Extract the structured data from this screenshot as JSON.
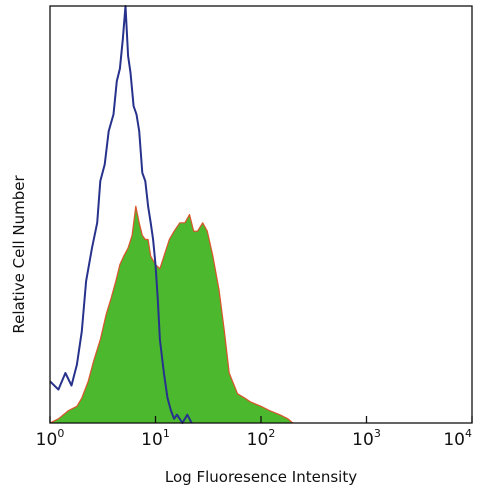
{
  "chart_data": {
    "type": "area",
    "xlabel": "Log Fluoresence Intensity",
    "ylabel": "Relative Cell Number",
    "x_scale": "log",
    "xlim": [
      1,
      10000
    ],
    "ylim": [
      0,
      100
    ],
    "x_ticks": [
      {
        "base": "10",
        "exp": "0",
        "value": 1
      },
      {
        "base": "10",
        "exp": "1",
        "value": 10
      },
      {
        "base": "10",
        "exp": "2",
        "value": 100
      },
      {
        "base": "10",
        "exp": "3",
        "value": 1000
      },
      {
        "base": "10",
        "exp": "4",
        "value": 10000
      }
    ],
    "grid": false,
    "series": [
      {
        "style": "filled",
        "fill_color": "#4cb82e",
        "line_color": "#d9542b",
        "x": [
          1.0,
          1.2,
          1.5,
          1.8,
          2.0,
          2.3,
          2.6,
          3.0,
          3.4,
          3.8,
          4.2,
          4.6,
          5.0,
          5.5,
          6.0,
          6.5,
          7.0,
          7.5,
          8.0,
          8.5,
          9.0,
          10.0,
          11.0,
          12.0,
          13.5,
          15.0,
          17.0,
          19.0,
          21.0,
          23.0,
          25.0,
          28.0,
          31.0,
          35.0,
          40.0,
          45.0,
          50.0,
          60.0,
          70.0,
          80.0,
          100.0,
          120.0,
          150.0,
          180.0,
          200.0
        ],
        "values": [
          0,
          1,
          3,
          4,
          6,
          10,
          15,
          20,
          26,
          30,
          34,
          38,
          40,
          42,
          45,
          52,
          48,
          45,
          44,
          44,
          40,
          38,
          37,
          40,
          44,
          46,
          48,
          48,
          50,
          46,
          46,
          48,
          46,
          40,
          32,
          22,
          12,
          7,
          6,
          5,
          4,
          3,
          2,
          1,
          0
        ]
      },
      {
        "style": "line",
        "line_color": "#27328c",
        "x": [
          1.0,
          1.2,
          1.4,
          1.6,
          1.8,
          2.0,
          2.2,
          2.5,
          2.8,
          3.0,
          3.3,
          3.6,
          4.0,
          4.3,
          4.6,
          4.9,
          5.2,
          5.5,
          5.8,
          6.2,
          6.6,
          7.0,
          7.5,
          8.0,
          8.5,
          9.0,
          9.5,
          10.0,
          10.5,
          11.0,
          12.0,
          13.0,
          14.0,
          15.0,
          16.0,
          18.0,
          20.0,
          22.0
        ],
        "values": [
          10,
          8,
          12,
          9,
          14,
          22,
          34,
          42,
          48,
          58,
          62,
          70,
          74,
          82,
          85,
          92,
          100,
          88,
          84,
          76,
          74,
          70,
          60,
          58,
          52,
          48,
          44,
          38,
          30,
          20,
          12,
          6,
          3,
          1,
          2,
          0,
          2,
          0
        ]
      }
    ]
  }
}
